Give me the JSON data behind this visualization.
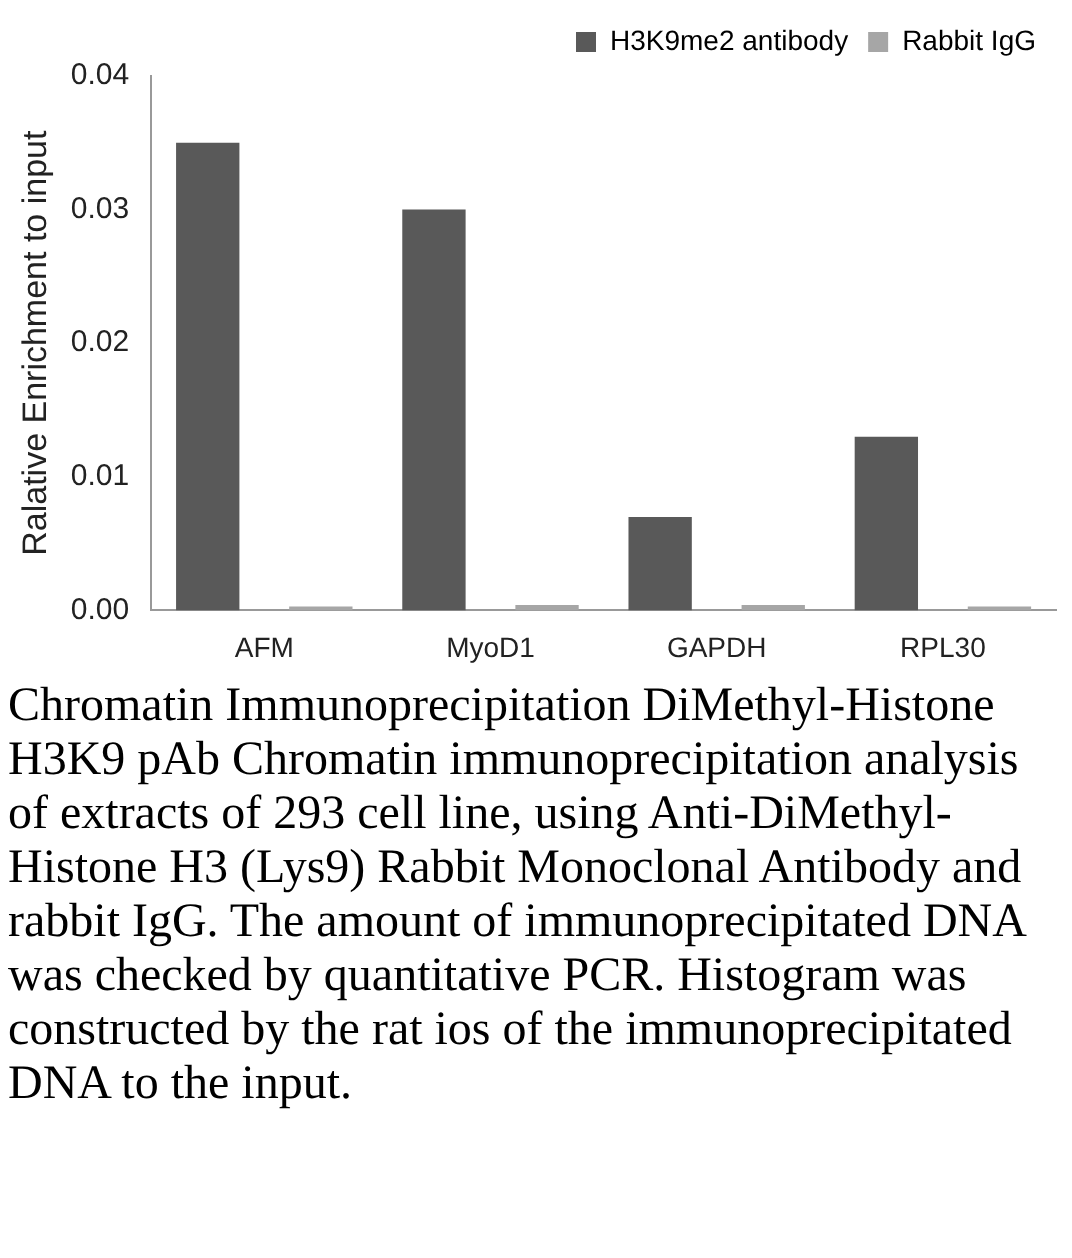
{
  "chart_data": {
    "type": "bar",
    "ylabel": "Ralative Enrichment to input",
    "categories": [
      "AFM",
      "MyoD1",
      "GAPDH",
      "RPL30"
    ],
    "series": [
      {
        "name": "H3K9me2 antibody",
        "color": "#595959",
        "values": [
          0.035,
          0.03,
          0.007,
          0.013
        ]
      },
      {
        "name": "Rabbit IgG",
        "color": "#a6a6a6",
        "values": [
          0.0003,
          0.0004,
          0.0004,
          0.0003
        ]
      }
    ],
    "ylim": [
      0,
      0.04
    ],
    "yticks": [
      {
        "value": 0,
        "label": "0.00"
      },
      {
        "value": 0.01,
        "label": "0.01"
      },
      {
        "value": 0.02,
        "label": "0.02"
      },
      {
        "value": 0.03,
        "label": "0.03"
      },
      {
        "value": 0.04,
        "label": "0.04"
      }
    ],
    "grid": false,
    "legend": "top right",
    "annotations": [
      "Chromatin Immunoprecipitation DiMethyl-Histone H3K9 pAb Chromatin immunoprecipitation analysis of extracts of 293 cell line, using Anti-DiMethyl-Histone H3 (Lys9) Rabbit Monoclonal Antibody and rabbit IgG. The amount of immunoprecipitated DNA was checked by quantitative PCR. Histogram was constructed by the rat ios of the immunoprecipitated DNA to the input."
    ]
  }
}
